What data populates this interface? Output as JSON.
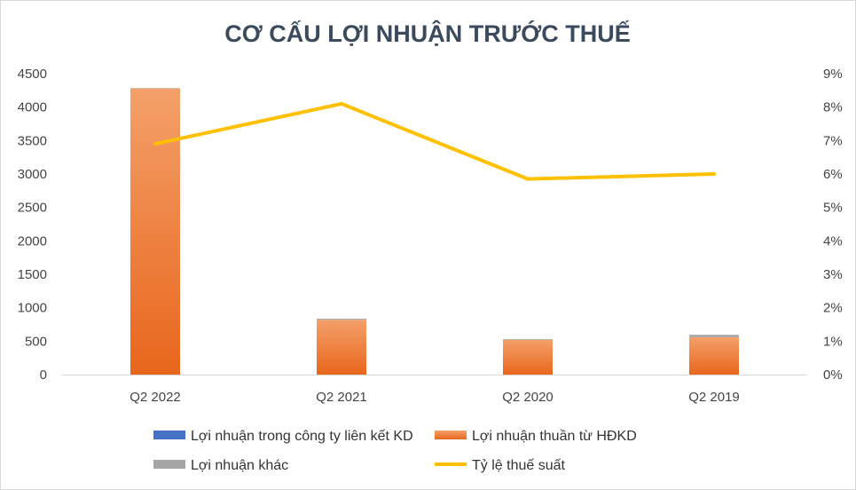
{
  "chart_data": {
    "type": "bar",
    "title": "CƠ CẤU LỢI NHUẬN TRƯỚC THUẾ",
    "categories": [
      "Q2 2022",
      "Q2 2021",
      "Q2 2020",
      "Q2 2019"
    ],
    "series": [
      {
        "name": "Lợi nhuận trong công ty liên kết KD",
        "kind": "bar",
        "axis": "left",
        "color": "#4472c4",
        "values": [
          0,
          0,
          0,
          0
        ]
      },
      {
        "name": "Lợi nhuận thuần từ HĐKD",
        "kind": "bar",
        "axis": "left",
        "color": "#ed7d31",
        "values": [
          4280,
          820,
          520,
          560
        ]
      },
      {
        "name": "Lợi nhuận khác",
        "kind": "bar",
        "axis": "left",
        "color": "#a5a5a5",
        "values": [
          5,
          15,
          10,
          35
        ]
      },
      {
        "name": "Tỷ lệ thuế suất",
        "kind": "line",
        "axis": "right",
        "color": "#ffc000",
        "values": [
          6.9,
          8.1,
          5.85,
          6.0
        ]
      }
    ],
    "y_left": {
      "ylim": [
        0,
        4500
      ],
      "ticks": [
        "0",
        "500",
        "1000",
        "1500",
        "2000",
        "2500",
        "3000",
        "3500",
        "4000",
        "4500"
      ]
    },
    "y_right": {
      "ylim": [
        0,
        9
      ],
      "ticks": [
        "0%",
        "1%",
        "2%",
        "3%",
        "4%",
        "5%",
        "6%",
        "7%",
        "8%",
        "9%"
      ]
    },
    "grid": false,
    "legend_position": "bottom"
  }
}
